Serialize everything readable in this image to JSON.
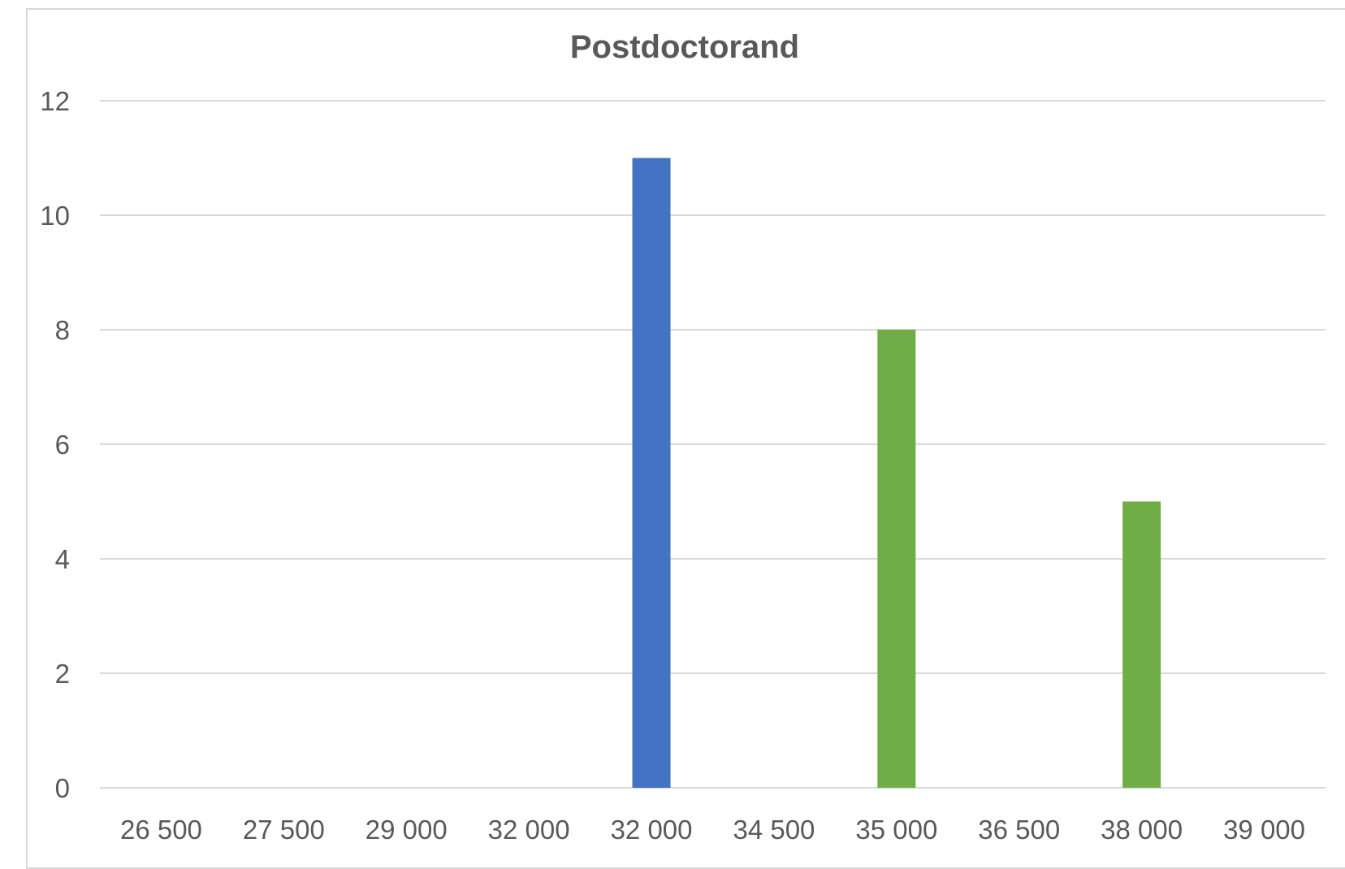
{
  "chart_data": {
    "type": "bar",
    "title": "Postdoctorand",
    "xlabel": "",
    "ylabel": "",
    "categories": [
      "26 500",
      "27 500",
      "29 000",
      "32 000",
      "32 000",
      "34 500",
      "35 000",
      "36 500",
      "38 000",
      "39 000"
    ],
    "values": [
      0,
      0,
      0,
      0,
      11,
      0,
      8,
      0,
      5,
      0
    ],
    "bar_colors": [
      "#4472c4",
      "#4472c4",
      "#4472c4",
      "#4472c4",
      "#4472c4",
      "#70ad47",
      "#70ad47",
      "#70ad47",
      "#70ad47",
      "#70ad47"
    ],
    "ylim": [
      0,
      12
    ],
    "yticks": [
      0,
      2,
      4,
      6,
      8,
      10,
      12
    ],
    "grid": true,
    "legend": "none"
  }
}
